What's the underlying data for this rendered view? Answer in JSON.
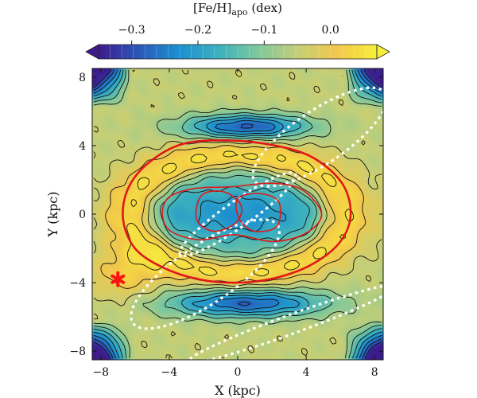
{
  "chart_data": {
    "type": "heatmap",
    "title": "",
    "xlabel": "X (kpc)",
    "ylabel": "Y (kpc)",
    "xlim": [
      -8.5,
      8.5
    ],
    "ylim": [
      -8.5,
      8.5
    ],
    "x_ticks": [
      -8,
      -4,
      0,
      4,
      8
    ],
    "y_ticks": [
      -8,
      -4,
      0,
      4,
      8
    ],
    "x_tick_labels": [
      "−8",
      "−4",
      "0",
      "4",
      "8"
    ],
    "y_tick_labels": [
      "−8",
      "−4",
      "0",
      "4",
      "8"
    ],
    "colorbar": {
      "label": "[Fe/H]apo (dex)",
      "label_main": "[Fe/H]",
      "label_sub": "apo",
      "label_unit": " (dex)",
      "range": [
        -0.35,
        0.07
      ],
      "ticks": [
        -0.3,
        -0.2,
        -0.1,
        0.0
      ],
      "tick_labels": [
        "−0.3",
        "−0.2",
        "−0.1",
        "0.0"
      ],
      "colors": [
        "#3d1b8c",
        "#2b58b8",
        "#1c8fd0",
        "#3bb0bf",
        "#7ec89c",
        "#c3cf78",
        "#f2c84a",
        "#f7ee3c"
      ],
      "extend": "both"
    },
    "field": {
      "background_dex": -0.05,
      "components": [
        {
          "kind": "elliptical-ring",
          "cx": 0,
          "cy": 0,
          "r": 6.0,
          "axis_ratio": 0.55,
          "width": 1.3,
          "amplitude_dex": 0.1
        },
        {
          "kind": "elliptical-ring",
          "cx": 0,
          "cy": 0,
          "r": 4.3,
          "axis_ratio": 0.55,
          "width": 0.9,
          "amplitude_dex": -0.08
        },
        {
          "kind": "bar-core",
          "cx": 0,
          "cy": 0,
          "rx": 4.2,
          "ry": 1.8,
          "amplitude_dex": -0.17
        },
        {
          "kind": "arc",
          "cx": 0.5,
          "cy": 5.1,
          "rx": 3.5,
          "ry": 0.7,
          "amplitude_dex": -0.24
        },
        {
          "kind": "arc",
          "cx": 0.5,
          "cy": -5.2,
          "rx": 4.5,
          "ry": 0.8,
          "amplitude_dex": -0.23
        },
        {
          "kind": "blob",
          "cx": -6.5,
          "cy": -3.5,
          "rx": 2.0,
          "ry": 1.5,
          "amplitude_dex": 0.07
        }
      ],
      "corners_dex": -0.35
    },
    "red_contours": [
      {
        "name": "outer ring",
        "points": [
          [
            -6.4,
            1.5
          ],
          [
            -5.2,
            3.0
          ],
          [
            -3.2,
            4.1
          ],
          [
            -0.5,
            4.3
          ],
          [
            2.2,
            4.0
          ],
          [
            4.4,
            3.3
          ],
          [
            6.1,
            1.8
          ],
          [
            6.6,
            0.0
          ],
          [
            6.0,
            -1.6
          ],
          [
            4.4,
            -2.9
          ],
          [
            2.3,
            -3.7
          ],
          [
            0.0,
            -4.0
          ],
          [
            -2.3,
            -3.8
          ],
          [
            -4.4,
            -3.1
          ],
          [
            -6.0,
            -2.0
          ],
          [
            -6.7,
            -0.3
          ]
        ]
      },
      {
        "name": "inner lobe west",
        "points": [
          [
            -2.1,
            1.1
          ],
          [
            -0.8,
            1.3
          ],
          [
            0.2,
            0.5
          ],
          [
            -0.1,
            -0.5
          ],
          [
            -1.4,
            -1.0
          ],
          [
            -2.4,
            -0.3
          ]
        ]
      },
      {
        "name": "inner lobe east",
        "points": [
          [
            0.0,
            0.9
          ],
          [
            1.3,
            1.2
          ],
          [
            2.4,
            0.7
          ],
          [
            2.3,
            -0.7
          ],
          [
            1.0,
            -1.0
          ],
          [
            0.1,
            -0.3
          ]
        ]
      },
      {
        "name": "mid ring",
        "points": [
          [
            -4.0,
            1.0
          ],
          [
            -2.5,
            1.5
          ],
          [
            -0.3,
            1.6
          ],
          [
            2.0,
            1.8
          ],
          [
            3.8,
            1.4
          ],
          [
            4.9,
            0.0
          ],
          [
            4.0,
            -1.1
          ],
          [
            2.1,
            -1.6
          ],
          [
            -0.2,
            -1.2
          ],
          [
            -2.2,
            -1.5
          ],
          [
            -3.9,
            -1.0
          ],
          [
            -4.4,
            0.0
          ]
        ]
      }
    ],
    "white_dotted_lines": [
      {
        "name": "upper-right ellipse",
        "cx": 4.8,
        "cy": 4.5,
        "rx": 4.6,
        "ry": 1.55,
        "angle_deg": 34
      },
      {
        "name": "lower-left ellipse",
        "cx": -1.9,
        "cy": -3.5,
        "rx": 5.1,
        "ry": 1.7,
        "angle_deg": 34
      },
      {
        "name": "central bar",
        "cx": 0.0,
        "cy": 0.0,
        "rx": 4.1,
        "ry": 0.75,
        "angle_deg": 35
      },
      {
        "name": "lower streak",
        "cx": 3.2,
        "cy": -6.4,
        "rx": 6.5,
        "ry": 0.55,
        "angle_deg": 20
      }
    ],
    "sun_marker": {
      "x": -7.0,
      "y": -3.8,
      "color": "#ff1010"
    }
  }
}
